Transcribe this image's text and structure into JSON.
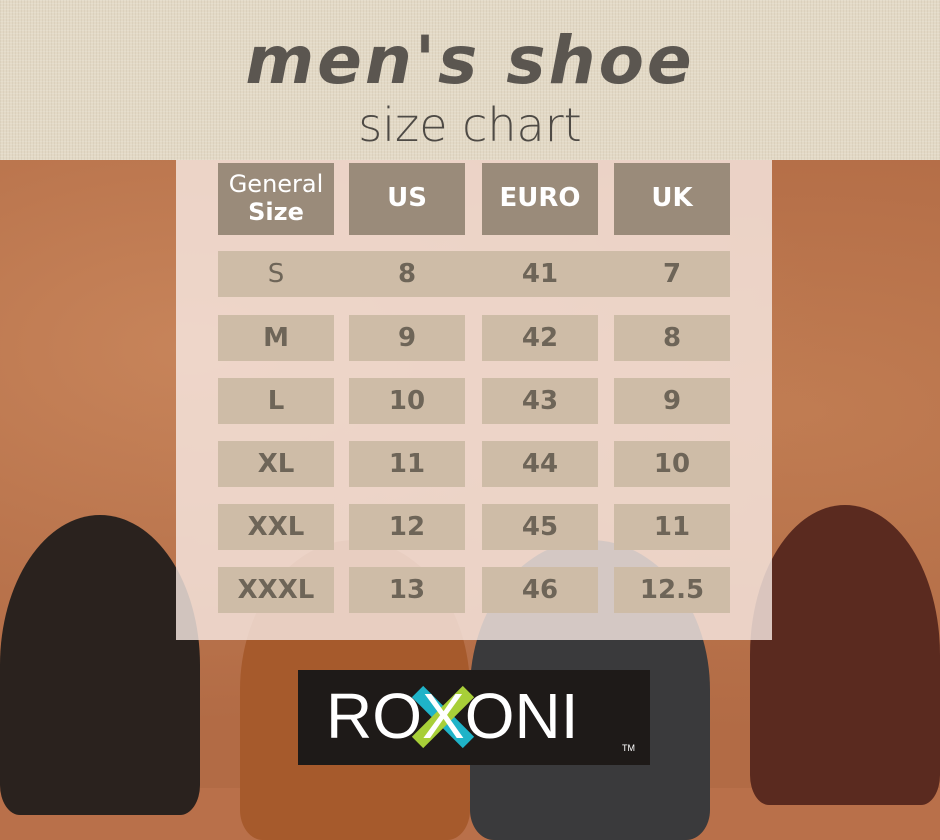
{
  "header": {
    "title": "men's shoe",
    "subtitle": "size chart"
  },
  "chart_data": {
    "type": "table",
    "columns": [
      {
        "line1": "General",
        "line2": "Size"
      },
      {
        "line1": "US"
      },
      {
        "line1": "EURO"
      },
      {
        "line1": "UK"
      }
    ],
    "rows": [
      [
        "S",
        "8",
        "41",
        "7"
      ],
      [
        "M",
        "9",
        "42",
        "8"
      ],
      [
        "L",
        "10",
        "43",
        "9"
      ],
      [
        "XL",
        "11",
        "44",
        "10"
      ],
      [
        "XXL",
        "12",
        "45",
        "11"
      ],
      [
        "XXXL",
        "13",
        "46",
        "12.5"
      ]
    ]
  },
  "logo": {
    "text": "ROXONI",
    "trademark": "TM"
  },
  "colors": {
    "header_cell": "#9a8b7a",
    "body_cell": "#cebca7",
    "cell_text": "#6e6558",
    "logo_bg": "#1e1a18",
    "logo_x_blue": "#1fb3c8",
    "logo_x_green": "#a8cf38"
  }
}
